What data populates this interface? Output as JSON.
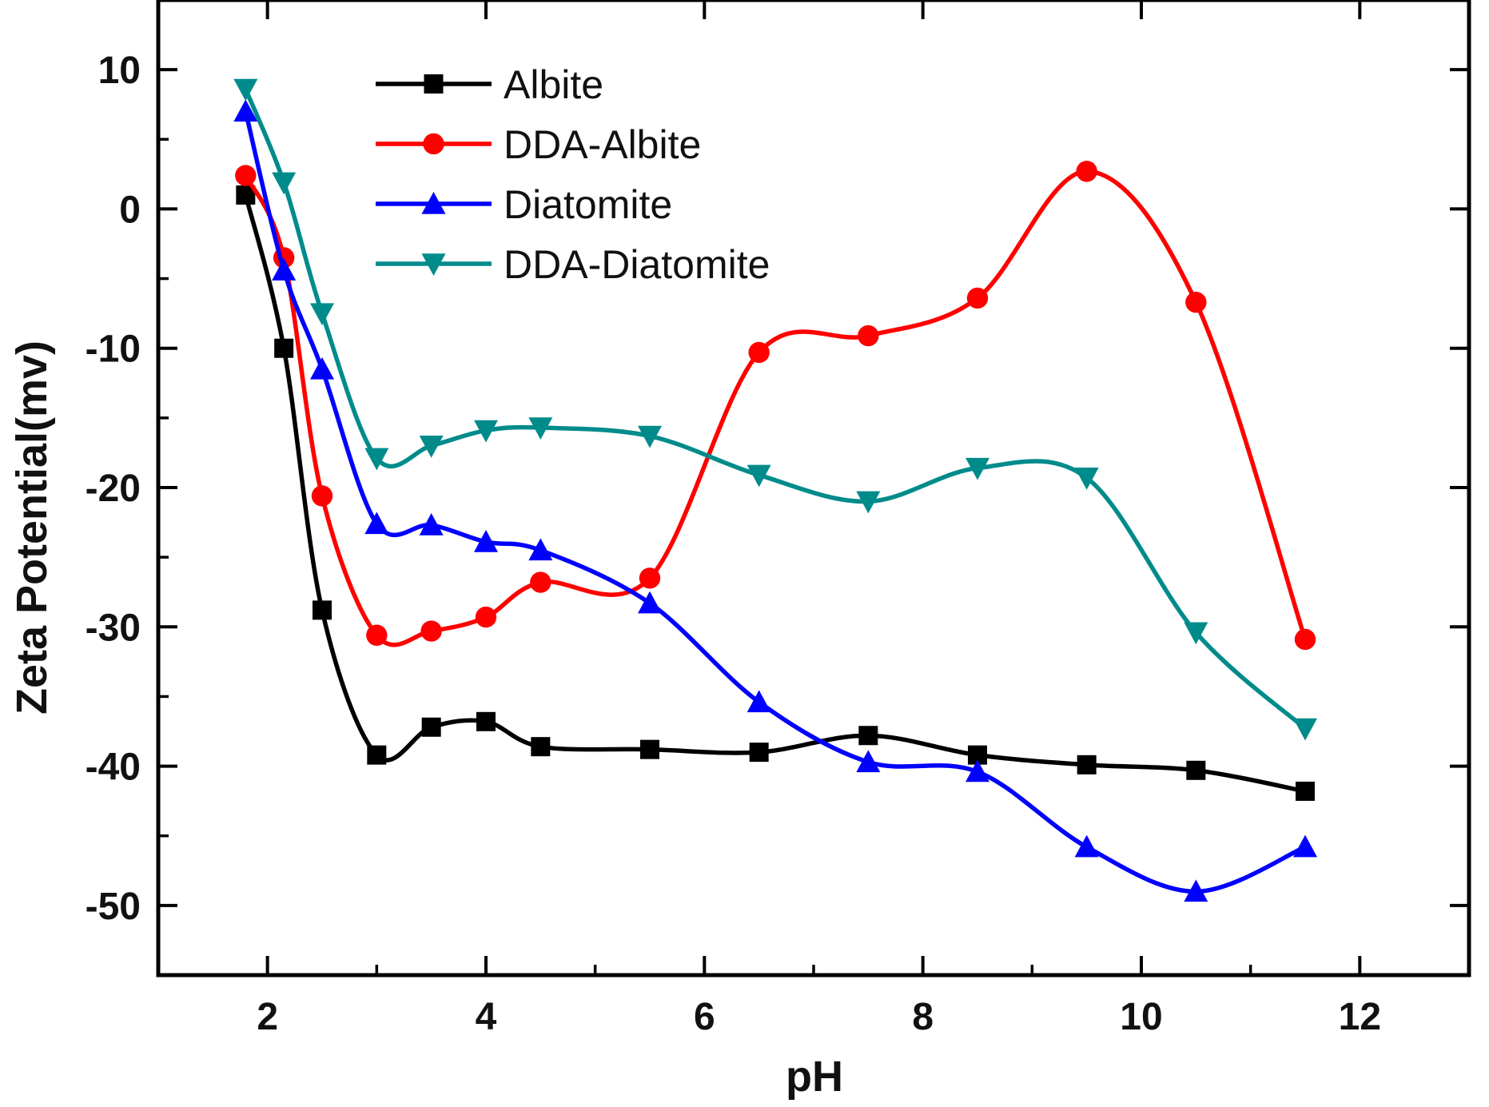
{
  "chart_data": {
    "type": "line",
    "title": "",
    "xlabel": "pH",
    "ylabel": "Zeta Potential(mv)",
    "xlim": [
      1,
      13
    ],
    "ylim": [
      -55,
      15
    ],
    "xticks": [
      2,
      4,
      6,
      8,
      10,
      12
    ],
    "yticks": [
      10,
      0,
      -10,
      -20,
      -30,
      -40,
      -50
    ],
    "legend_position": "top-left",
    "series": [
      {
        "name": "Albite",
        "color": "#000000",
        "marker": "square",
        "x": [
          1.8,
          2.15,
          2.5,
          3.0,
          3.5,
          4.0,
          4.5,
          5.5,
          6.5,
          7.5,
          8.5,
          9.5,
          10.5,
          11.5
        ],
        "values": [
          1.0,
          -10.0,
          -28.8,
          -39.2,
          -37.2,
          -36.8,
          -38.6,
          -38.8,
          -39.0,
          -37.8,
          -39.2,
          -39.9,
          -40.3,
          -41.8
        ]
      },
      {
        "name": "DDA-Albite",
        "color": "#ff0000",
        "marker": "circle",
        "x": [
          1.8,
          2.15,
          2.5,
          3.0,
          3.5,
          4.0,
          4.5,
          5.5,
          6.5,
          7.5,
          8.5,
          9.5,
          10.5,
          11.5
        ],
        "values": [
          2.4,
          -3.5,
          -20.6,
          -30.6,
          -30.3,
          -29.3,
          -26.8,
          -26.5,
          -10.3,
          -9.1,
          -6.4,
          2.7,
          -6.7,
          -30.9
        ]
      },
      {
        "name": "Diatomite",
        "color": "#0000ff",
        "marker": "triangle-up",
        "x": [
          1.8,
          2.15,
          2.5,
          3.0,
          3.5,
          4.0,
          4.5,
          5.5,
          6.5,
          7.5,
          8.5,
          9.5,
          10.5,
          11.5
        ],
        "values": [
          7.0,
          -4.4,
          -11.5,
          -22.6,
          -22.7,
          -23.9,
          -24.5,
          -28.3,
          -35.4,
          -39.7,
          -40.4,
          -45.8,
          -49.0,
          -45.8
        ]
      },
      {
        "name": "DDA-Diatomite",
        "color": "#008b8b",
        "marker": "triangle-down",
        "x": [
          1.8,
          2.15,
          2.5,
          3.0,
          3.5,
          4.0,
          4.5,
          5.5,
          6.5,
          7.5,
          8.5,
          9.5,
          10.5,
          11.5
        ],
        "values": [
          8.6,
          1.9,
          -7.5,
          -17.9,
          -17.0,
          -15.9,
          -15.7,
          -16.3,
          -19.1,
          -21.0,
          -18.6,
          -19.3,
          -30.4,
          -37.3
        ]
      }
    ]
  }
}
